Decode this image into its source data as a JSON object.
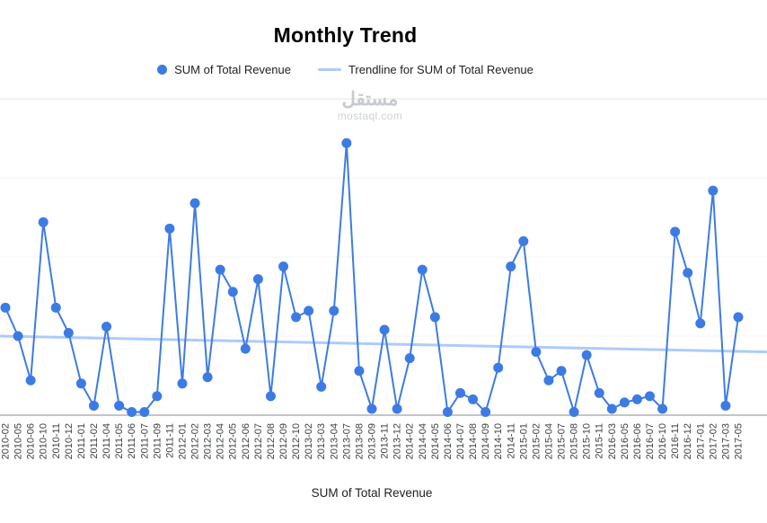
{
  "page": {
    "title": "Monthly Trend"
  },
  "legend": [
    {
      "label": "SUM of Total Revenue",
      "marker": "point",
      "color": "#3d7be4"
    },
    {
      "label": "Trendline for SUM of Total Revenue",
      "marker": "line",
      "color": "#aecbfa"
    }
  ],
  "watermark": {
    "line1": "مستقل",
    "line2": "mostaql.com"
  },
  "chart_data": {
    "type": "line",
    "title": "Monthly Trend",
    "xlabel": "SUM of Total Revenue",
    "ylabel": "",
    "ylim": [
      0,
      100
    ],
    "y_axis_labels_visible": false,
    "grid": true,
    "legend_position": "top",
    "series_name": "SUM of Total Revenue",
    "series_color": "#3d7be4",
    "trendline_name": "Trendline for SUM of Total Revenue",
    "trendline_color": "#aecbfa",
    "trendline": {
      "start_value": 25,
      "end_value": 20
    },
    "categories": [
      "2010-02",
      "2010-05",
      "2010-06",
      "2010-10",
      "2010-11",
      "2010-12",
      "2011-01",
      "2011-02",
      "2011-04",
      "2011-05",
      "2011-06",
      "2011-07",
      "2011-09",
      "2011-11",
      "2012-01",
      "2012-02",
      "2012-03",
      "2012-04",
      "2012-05",
      "2012-06",
      "2012-07",
      "2012-08",
      "2012-09",
      "2012-10",
      "2013-02",
      "2013-03",
      "2013-04",
      "2013-07",
      "2013-08",
      "2013-09",
      "2013-11",
      "2013-12",
      "2014-02",
      "2014-04",
      "2014-05",
      "2014-06",
      "2014-07",
      "2014-08",
      "2014-09",
      "2014-10",
      "2014-11",
      "2015-01",
      "2015-02",
      "2015-04",
      "2015-07",
      "2015-08",
      "2015-10",
      "2015-11",
      "2016-03",
      "2016-05",
      "2016-06",
      "2016-07",
      "2016-10",
      "2016-11",
      "2016-12",
      "2017-01",
      "2017-02",
      "2017-03",
      "2017-05"
    ],
    "values": [
      34,
      25,
      11,
      61,
      34,
      26,
      10,
      3,
      28,
      3,
      1,
      1,
      6,
      59,
      10,
      67,
      12,
      46,
      39,
      21,
      43,
      6,
      47,
      31,
      33,
      9,
      33,
      86,
      14,
      2,
      27,
      2,
      18,
      46,
      31,
      1,
      7,
      5,
      1,
      15,
      47,
      55,
      20,
      11,
      14,
      1,
      19,
      7,
      2,
      4,
      5,
      6,
      2,
      58,
      45,
      29,
      71,
      3,
      31
    ]
  }
}
